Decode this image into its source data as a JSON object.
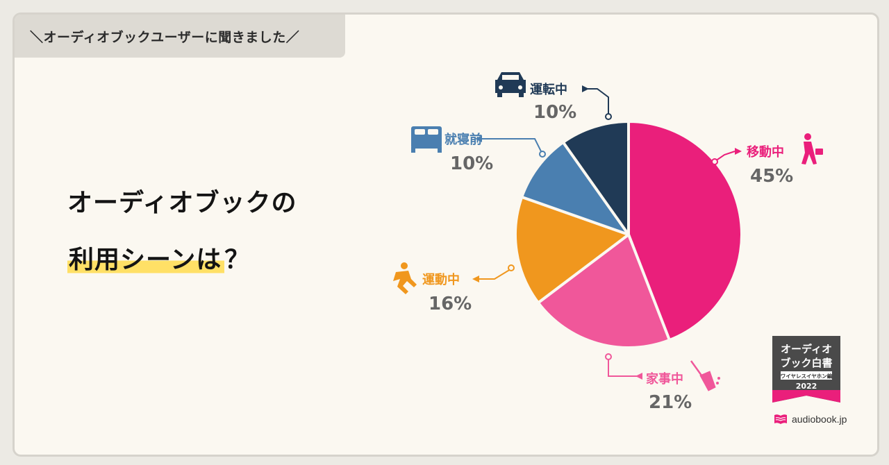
{
  "banner": "＼オーディオブックユーザーに聞きました／",
  "headline": {
    "line1": "オーディオブックの",
    "line2_highlight": "利用シーンは",
    "line2_tail": "？"
  },
  "chart_data": {
    "type": "pie",
    "categories": [
      "移動中",
      "家事中",
      "運動中",
      "就寝前",
      "運転中"
    ],
    "values": [
      45,
      21,
      16,
      10,
      10
    ],
    "value_labels": [
      "45%",
      "21%",
      "16%",
      "10%",
      "10%"
    ],
    "colors": [
      "#ea1f7b",
      "#f0579a",
      "#f0971e",
      "#4a7fb0",
      "#203a56"
    ],
    "icons": [
      "businessman-walking-icon",
      "broom-icon",
      "runner-icon",
      "bed-icon",
      "car-icon"
    ]
  },
  "badge": {
    "line1": "オーディオ",
    "line2": "ブック白書",
    "subtitle": "ワイヤレスイヤホン編",
    "year": "2022"
  },
  "brand": {
    "name": "audiobook.jp"
  }
}
